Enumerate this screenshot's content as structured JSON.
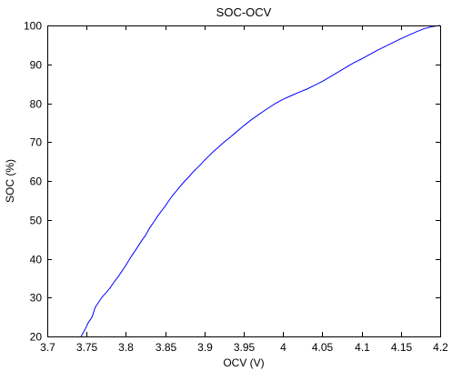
{
  "chart_data": {
    "type": "line",
    "title": "SOC-OCV",
    "xlabel": "OCV (V)",
    "ylabel": "SOC (%)",
    "xlim": [
      3.7,
      4.2
    ],
    "ylim": [
      20,
      100
    ],
    "xticks": [
      "3.7",
      "3.75",
      "3.8",
      "3.85",
      "3.9",
      "3.95",
      "4",
      "4.05",
      "4.1",
      "4.15",
      "4.2"
    ],
    "yticks": [
      "20",
      "30",
      "40",
      "50",
      "60",
      "70",
      "80",
      "90",
      "100"
    ],
    "grid": false,
    "series": [
      {
        "color": "#0000ff",
        "x": [
          3.743,
          3.748,
          3.752,
          3.757,
          3.761,
          3.766,
          3.77,
          3.775,
          3.78,
          3.785,
          3.79,
          3.795,
          3.8,
          3.805,
          3.81,
          3.815,
          3.82,
          3.825,
          3.83,
          3.835,
          3.84,
          3.845,
          3.85,
          3.855,
          3.86,
          3.865,
          3.87,
          3.875,
          3.88,
          3.885,
          3.89,
          3.895,
          3.9,
          3.905,
          3.91,
          3.915,
          3.92,
          3.925,
          3.93,
          3.94,
          3.95,
          3.96,
          3.97,
          3.98,
          3.99,
          4.0,
          4.01,
          4.02,
          4.03,
          4.04,
          4.05,
          4.06,
          4.07,
          4.08,
          4.09,
          4.1,
          4.11,
          4.12,
          4.13,
          4.14,
          4.15,
          4.16,
          4.17,
          4.18,
          4.19,
          4.2
        ],
        "y": [
          20.0,
          21.8,
          23.5,
          25.0,
          27.5,
          29.0,
          30.2,
          31.3,
          32.5,
          34.0,
          35.3,
          36.8,
          38.3,
          40.0,
          41.5,
          43.0,
          44.6,
          46.0,
          47.8,
          49.3,
          50.8,
          52.2,
          53.5,
          55.0,
          56.4,
          57.6,
          58.8,
          60.0,
          61.0,
          62.2,
          63.2,
          64.2,
          65.3,
          66.3,
          67.3,
          68.2,
          69.1,
          70.0,
          70.8,
          72.5,
          74.2,
          75.8,
          77.2,
          78.6,
          79.9,
          81.0,
          81.9,
          82.8,
          83.6,
          84.6,
          85.6,
          86.8,
          88.0,
          89.2,
          90.4,
          91.4,
          92.5,
          93.6,
          94.6,
          95.6,
          96.6,
          97.5,
          98.4,
          99.2,
          99.7,
          100.0
        ]
      }
    ]
  }
}
